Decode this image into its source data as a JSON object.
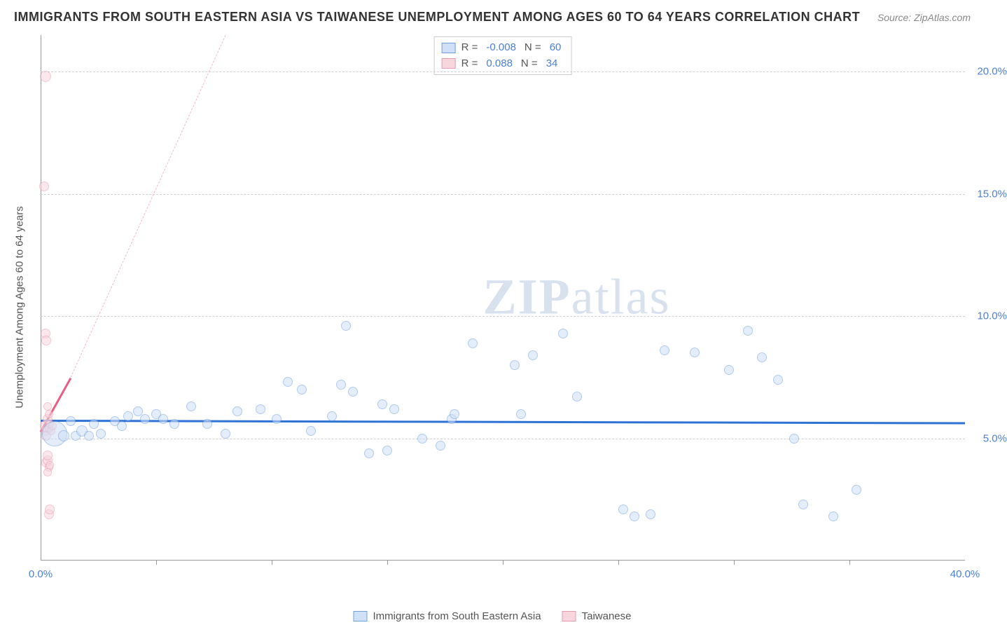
{
  "title": "IMMIGRANTS FROM SOUTH EASTERN ASIA VS TAIWANESE UNEMPLOYMENT AMONG AGES 60 TO 64 YEARS CORRELATION CHART",
  "source": "Source: ZipAtlas.com",
  "y_axis_label": "Unemployment Among Ages 60 to 64 years",
  "watermark_a": "ZIP",
  "watermark_b": "atlas",
  "chart": {
    "type": "scatter",
    "xlim": [
      0,
      40
    ],
    "ylim": [
      0,
      21.5
    ],
    "x_ticks": [
      0,
      40
    ],
    "x_tick_labels": [
      "0.0%",
      "40.0%"
    ],
    "x_minor_ticks": [
      5,
      10,
      15,
      20,
      25,
      30,
      35
    ],
    "y_ticks": [
      5,
      10,
      15,
      20
    ],
    "y_tick_labels": [
      "5.0%",
      "10.0%",
      "15.0%",
      "20.0%"
    ],
    "grid_color": "#d0d0d0",
    "axis_color": "#999999",
    "tick_label_color": "#4a7fd8",
    "background_color": "#ffffff"
  },
  "series_a": {
    "name": "Immigrants from South Eastern Asia",
    "fill": "#cfe0f7",
    "stroke": "#6fa0e0",
    "fill_opacity": 0.55,
    "trend_color": "#2f72d6",
    "trend_dash_color": "#a9c4ef",
    "R_label": "R =",
    "R": "-0.008",
    "N_label": "N =",
    "N": "60",
    "trend": {
      "x1": 0,
      "y1": 5.75,
      "x2": 40,
      "y2": 5.65
    },
    "points": [
      {
        "x": 0.6,
        "y": 5.2,
        "r": 18
      },
      {
        "x": 1.0,
        "y": 5.1,
        "r": 8
      },
      {
        "x": 1.3,
        "y": 5.7,
        "r": 7
      },
      {
        "x": 1.5,
        "y": 5.1,
        "r": 7
      },
      {
        "x": 1.8,
        "y": 5.3,
        "r": 8
      },
      {
        "x": 2.1,
        "y": 5.1,
        "r": 7
      },
      {
        "x": 2.3,
        "y": 5.6,
        "r": 7
      },
      {
        "x": 2.6,
        "y": 5.2,
        "r": 7
      },
      {
        "x": 3.2,
        "y": 5.7,
        "r": 7
      },
      {
        "x": 3.5,
        "y": 5.5,
        "r": 7
      },
      {
        "x": 3.8,
        "y": 5.9,
        "r": 7
      },
      {
        "x": 4.2,
        "y": 6.1,
        "r": 7
      },
      {
        "x": 4.5,
        "y": 5.8,
        "r": 7
      },
      {
        "x": 5.0,
        "y": 6.0,
        "r": 7
      },
      {
        "x": 5.3,
        "y": 5.8,
        "r": 7
      },
      {
        "x": 5.8,
        "y": 5.6,
        "r": 7
      },
      {
        "x": 6.5,
        "y": 6.3,
        "r": 7
      },
      {
        "x": 7.2,
        "y": 5.6,
        "r": 7
      },
      {
        "x": 8.0,
        "y": 5.2,
        "r": 7
      },
      {
        "x": 8.5,
        "y": 6.1,
        "r": 7
      },
      {
        "x": 9.5,
        "y": 6.2,
        "r": 7
      },
      {
        "x": 10.2,
        "y": 5.8,
        "r": 7
      },
      {
        "x": 10.7,
        "y": 7.3,
        "r": 7
      },
      {
        "x": 11.3,
        "y": 7.0,
        "r": 7
      },
      {
        "x": 11.7,
        "y": 5.3,
        "r": 7
      },
      {
        "x": 12.6,
        "y": 5.9,
        "r": 7
      },
      {
        "x": 13.0,
        "y": 7.2,
        "r": 7
      },
      {
        "x": 13.5,
        "y": 6.9,
        "r": 7
      },
      {
        "x": 13.2,
        "y": 9.6,
        "r": 7
      },
      {
        "x": 14.2,
        "y": 4.4,
        "r": 7
      },
      {
        "x": 14.8,
        "y": 6.4,
        "r": 7
      },
      {
        "x": 15.0,
        "y": 4.5,
        "r": 7
      },
      {
        "x": 15.3,
        "y": 6.2,
        "r": 7
      },
      {
        "x": 16.5,
        "y": 5.0,
        "r": 7
      },
      {
        "x": 17.3,
        "y": 4.7,
        "r": 7
      },
      {
        "x": 17.8,
        "y": 5.8,
        "r": 7
      },
      {
        "x": 17.9,
        "y": 6.0,
        "r": 7
      },
      {
        "x": 18.7,
        "y": 8.9,
        "r": 7
      },
      {
        "x": 20.5,
        "y": 8.0,
        "r": 7
      },
      {
        "x": 20.8,
        "y": 6.0,
        "r": 7
      },
      {
        "x": 21.3,
        "y": 8.4,
        "r": 7
      },
      {
        "x": 22.6,
        "y": 9.3,
        "r": 7
      },
      {
        "x": 23.2,
        "y": 6.7,
        "r": 7
      },
      {
        "x": 25.2,
        "y": 2.1,
        "r": 7
      },
      {
        "x": 25.7,
        "y": 1.8,
        "r": 7
      },
      {
        "x": 26.4,
        "y": 1.9,
        "r": 7
      },
      {
        "x": 27.0,
        "y": 8.6,
        "r": 7
      },
      {
        "x": 28.3,
        "y": 8.5,
        "r": 7
      },
      {
        "x": 29.8,
        "y": 7.8,
        "r": 7
      },
      {
        "x": 30.6,
        "y": 9.4,
        "r": 7
      },
      {
        "x": 31.2,
        "y": 8.3,
        "r": 7
      },
      {
        "x": 31.9,
        "y": 7.4,
        "r": 7
      },
      {
        "x": 32.6,
        "y": 5.0,
        "r": 7
      },
      {
        "x": 33.0,
        "y": 2.3,
        "r": 7
      },
      {
        "x": 34.3,
        "y": 1.8,
        "r": 7
      },
      {
        "x": 35.3,
        "y": 2.9,
        "r": 7
      }
    ]
  },
  "series_b": {
    "name": "Taiwanese",
    "fill": "#f7d6de",
    "stroke": "#e99ab0",
    "fill_opacity": 0.55,
    "trend_color": "#e85c85",
    "trend_dash_color": "#f3b9c8",
    "R_label": "R =",
    "R": "0.088",
    "N_label": "N =",
    "N": "34",
    "trend_solid": {
      "x1": 0,
      "y1": 5.3,
      "x2": 1.3,
      "y2": 7.5
    },
    "trend_dash": {
      "x1": 1.3,
      "y1": 7.5,
      "x2": 8.0,
      "y2": 21.5
    },
    "points": [
      {
        "x": 0.2,
        "y": 5.3,
        "r": 7
      },
      {
        "x": 0.25,
        "y": 5.5,
        "r": 9
      },
      {
        "x": 0.3,
        "y": 5.8,
        "r": 7
      },
      {
        "x": 0.25,
        "y": 5.1,
        "r": 7
      },
      {
        "x": 0.25,
        "y": 4.0,
        "r": 7
      },
      {
        "x": 0.3,
        "y": 4.1,
        "r": 7
      },
      {
        "x": 0.3,
        "y": 4.3,
        "r": 7
      },
      {
        "x": 0.35,
        "y": 3.8,
        "r": 6
      },
      {
        "x": 0.4,
        "y": 3.9,
        "r": 6
      },
      {
        "x": 0.3,
        "y": 3.6,
        "r": 6
      },
      {
        "x": 0.35,
        "y": 1.9,
        "r": 7
      },
      {
        "x": 0.4,
        "y": 2.1,
        "r": 7
      },
      {
        "x": 0.2,
        "y": 9.3,
        "r": 7
      },
      {
        "x": 0.25,
        "y": 9.0,
        "r": 7
      },
      {
        "x": 0.15,
        "y": 15.3,
        "r": 7
      },
      {
        "x": 0.2,
        "y": 19.8,
        "r": 8
      },
      {
        "x": 0.3,
        "y": 6.3,
        "r": 6
      },
      {
        "x": 0.35,
        "y": 6.0,
        "r": 6
      },
      {
        "x": 0.35,
        "y": 5.4,
        "r": 6
      },
      {
        "x": 0.4,
        "y": 5.6,
        "r": 6
      },
      {
        "x": 0.45,
        "y": 5.3,
        "r": 6
      },
      {
        "x": 0.5,
        "y": 5.5,
        "r": 6
      }
    ]
  }
}
